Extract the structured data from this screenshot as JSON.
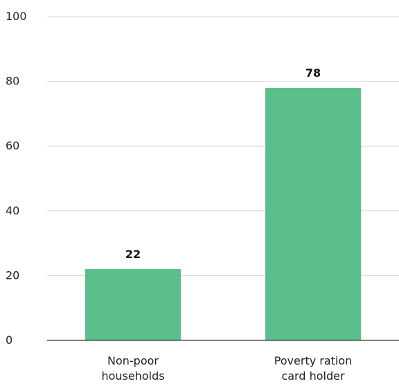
{
  "chart_data": {
    "type": "bar",
    "categories": [
      [
        "Non-poor",
        "households"
      ],
      [
        "Poverty ration",
        "card holder"
      ]
    ],
    "values": [
      22,
      78
    ],
    "data_labels": [
      "22",
      "78"
    ],
    "yticks": [
      0,
      20,
      40,
      60,
      80,
      100
    ],
    "ylim": [
      0,
      100
    ],
    "grid": true,
    "bar_color": "#5bbf8c",
    "title": "",
    "xlabel": "",
    "ylabel": ""
  }
}
